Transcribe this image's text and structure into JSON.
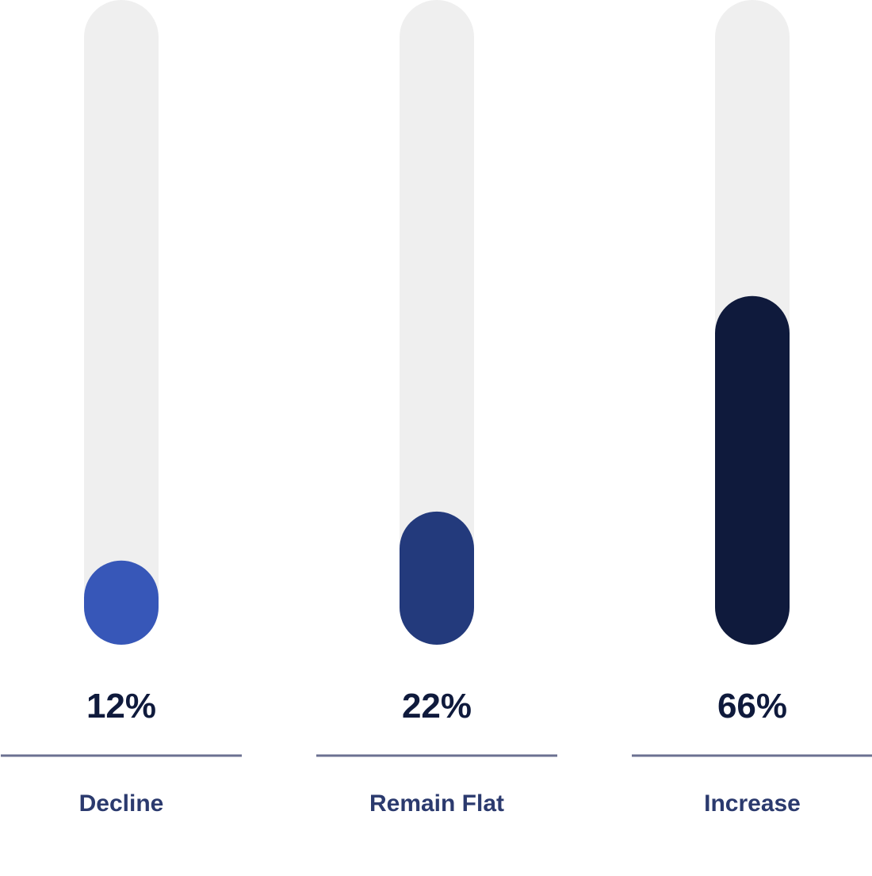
{
  "chart_data": {
    "type": "bar",
    "categories": [
      "Decline",
      "Remain Flat",
      "Increase"
    ],
    "values": [
      12,
      22,
      66
    ],
    "value_labels": [
      "12%",
      "22%",
      "66%"
    ],
    "ylim": [
      0,
      100
    ],
    "colors": [
      "#3757b8",
      "#233a7c",
      "#0f1a3c"
    ],
    "track_color": "#efefef",
    "divider_color": "#6b7191",
    "label_color": "#2b3a6e",
    "value_label_color": "#0f1a3c",
    "grid": false
  }
}
